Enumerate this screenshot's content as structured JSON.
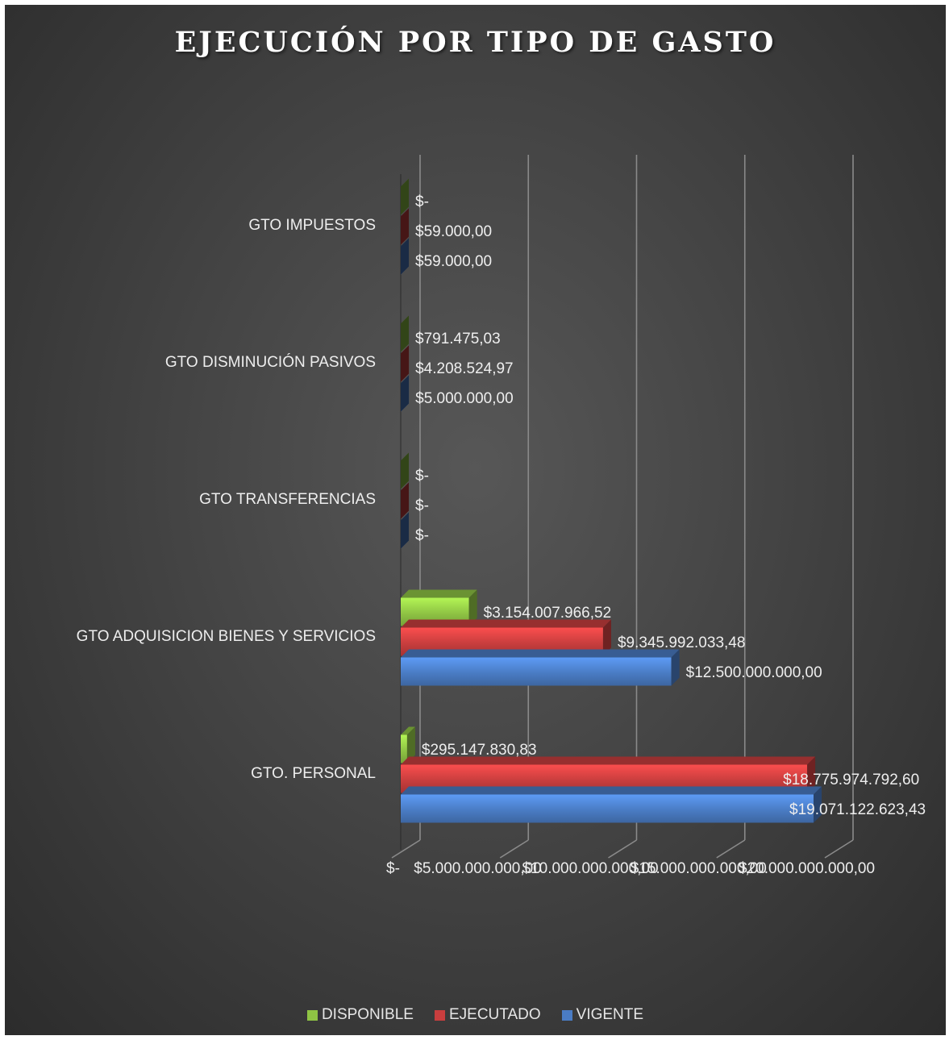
{
  "chart_data": {
    "type": "bar",
    "orientation": "horizontal",
    "title": "EJECUCIÓN POR TIPO DE GASTO",
    "categories": [
      "GTO. PERSONAL",
      "GTO ADQUISICION BIENES Y SERVICIOS",
      "GTO TRANSFERENCIAS",
      "GTO DISMINUCIÓN PASIVOS",
      "GTO IMPUESTOS"
    ],
    "series": [
      {
        "name": "DISPONIBLE",
        "color": "#8fc444",
        "values": [
          295147830.83,
          3154007966.52,
          0,
          791475.03,
          0
        ],
        "labels": [
          "$295.147.830,83",
          "$3.154.007.966,52",
          "$-",
          "$791.475,03",
          "$-"
        ]
      },
      {
        "name": "EJECUTADO",
        "color": "#c93e3e",
        "values": [
          18775974792.6,
          9345992033.48,
          0,
          4208524.97,
          59000
        ],
        "labels": [
          "$18.775.974.792,60",
          "$9.345.992.033,48",
          "$-",
          "$4.208.524,97",
          "$59.000,00"
        ]
      },
      {
        "name": "VIGENTE",
        "color": "#4a7cc4",
        "values": [
          19071122623.43,
          12500000000,
          0,
          5000000,
          59000
        ],
        "labels": [
          "$19.071.122.623,43",
          "$12.500.000.000,00",
          "$-",
          "$5.000.000,00",
          "$59.000,00"
        ]
      }
    ],
    "x_ticks": [
      0,
      5000000000,
      10000000000,
      15000000000,
      20000000000
    ],
    "x_tick_labels": [
      "$-",
      "$5.000.000.000,00",
      "$10.000.000.000,00",
      "$15.000.000.000,00",
      "$20.000.000.000,00"
    ],
    "xlim": [
      0,
      20000000000
    ],
    "grid": true,
    "legend_position": "bottom"
  }
}
